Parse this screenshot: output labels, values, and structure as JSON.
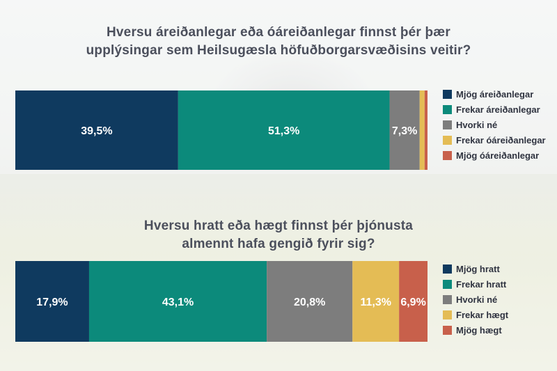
{
  "colors": {
    "mjog_pos": "#0f3a5f",
    "frekar_pos": "#0c8a7b",
    "hvorki": "#7d7d7d",
    "frekar_neg": "#e4bc55",
    "mjog_neg": "#c8604b"
  },
  "chart_data": [
    {
      "type": "bar",
      "orientation": "horizontal-stacked",
      "title_lines": [
        "Hversu áreiðanlegar eða óáreiðanlegar finnst þér þær",
        "upplýsingar sem Heilsugæsla höfuðborgarsvæðisins veitir?"
      ],
      "series": [
        {
          "name": "Mjög áreiðanlegar",
          "value": 39.5,
          "label": "39,5%",
          "color": "#0f3a5f"
        },
        {
          "name": "Frekar áreiðanlegar",
          "value": 51.3,
          "label": "51,3%",
          "color": "#0c8a7b"
        },
        {
          "name": "Hvorki né",
          "value": 7.3,
          "label": "7,3%",
          "color": "#7d7d7d"
        },
        {
          "name": "Frekar óáreiðanlegar",
          "value": 1.2,
          "label": "",
          "color": "#e4bc55"
        },
        {
          "name": "Mjög óáreiðanlegar",
          "value": 0.7,
          "label": "",
          "color": "#c8604b"
        }
      ],
      "xlim": [
        0,
        100
      ],
      "legend_position": "right"
    },
    {
      "type": "bar",
      "orientation": "horizontal-stacked",
      "title_lines": [
        "Hversu hratt eða hægt finnst þér þjónusta",
        "almennt hafa gengið fyrir sig?"
      ],
      "series": [
        {
          "name": "Mjög hratt",
          "value": 17.9,
          "label": "17,9%",
          "color": "#0f3a5f"
        },
        {
          "name": "Frekar hratt",
          "value": 43.1,
          "label": "43,1%",
          "color": "#0c8a7b"
        },
        {
          "name": "Hvorki né",
          "value": 20.8,
          "label": "20,8%",
          "color": "#7d7d7d"
        },
        {
          "name": "Frekar hægt",
          "value": 11.3,
          "label": "11,3%",
          "color": "#e4bc55"
        },
        {
          "name": "Mjög hægt",
          "value": 6.9,
          "label": "6,9%",
          "color": "#c8604b"
        }
      ],
      "xlim": [
        0,
        100
      ],
      "legend_position": "right"
    }
  ]
}
